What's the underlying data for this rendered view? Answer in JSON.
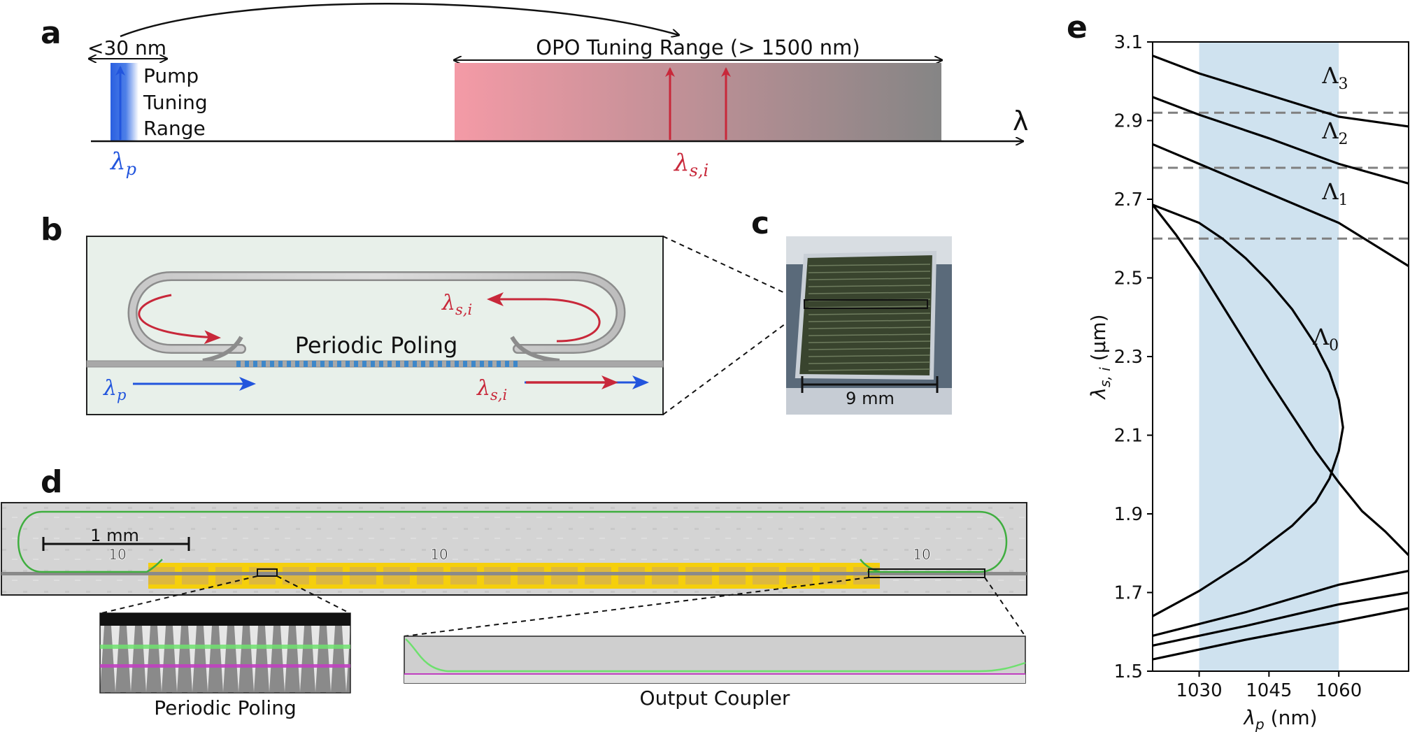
{
  "panel_labels": {
    "a": "a",
    "b": "b",
    "c": "c",
    "d": "d",
    "e": "e"
  },
  "panel_a": {
    "pump_range_label": "<30 nm",
    "pump_label_lines": [
      "Pump",
      "Tuning",
      "Range"
    ],
    "opo_range_label": "OPO Tuning Range (> 1500 nm)",
    "axis_symbol": "λ",
    "pump_symbol": "λ",
    "pump_subscript": "p",
    "signal_symbol": "λ",
    "signal_subscript": "s,i",
    "colors": {
      "pump": "#2255dd",
      "signal": "#c8283a",
      "opo_start": "#f49aa6",
      "opo_end": "#858585"
    }
  },
  "panel_b": {
    "poling_label": "Periodic Poling",
    "ring_signal_symbol": "λ",
    "ring_signal_subscript": "s,i",
    "pump_symbol": "λ",
    "pump_subscript": "p",
    "out_signal_symbol": "λ",
    "out_signal_subscript": "s,i",
    "colors": {
      "background": "#e8f0ea",
      "waveguide": "#a8a8a8",
      "poling": "#3d87c9"
    }
  },
  "panel_c": {
    "scale_label": "9 mm"
  },
  "panel_d": {
    "scale_label": "1 mm",
    "chip_marks": [
      "10",
      "10",
      "10"
    ],
    "inset_left_label": "Periodic Poling",
    "inset_right_label": "Output Coupler",
    "colors": {
      "poling_band": "#f5cf0c",
      "ring": "#3fae3f",
      "inset_green": "#6ee06e",
      "inset_magenta": "#c040c0"
    }
  },
  "chart_data": {
    "type": "line",
    "xlabel_symbol": "λ",
    "xlabel_subscript": "p",
    "xlabel_unit": " (nm)",
    "ylabel_symbol": "λ",
    "ylabel_subscript": "s, i",
    "ylabel_unit": " (μm)",
    "xlim": [
      1020,
      1075
    ],
    "ylim": [
      1.5,
      3.1
    ],
    "xticks": [
      1030,
      1045,
      1060
    ],
    "yticks": [
      1.5,
      1.7,
      1.9,
      2.1,
      2.3,
      2.5,
      2.7,
      2.9,
      3.1
    ],
    "shaded_band": {
      "from": 1030,
      "to": 1060,
      "color": "#cfe2ef"
    },
    "hlines": [
      2.6,
      2.78,
      2.92
    ],
    "series": [
      {
        "name": "Λ0",
        "label_sym": "Λ",
        "label_sub": "0",
        "points": [
          [
            1020,
            2.686
          ],
          [
            1025,
            2.61
          ],
          [
            1030,
            2.525
          ],
          [
            1035,
            2.43
          ],
          [
            1040,
            2.335
          ],
          [
            1045,
            2.24
          ],
          [
            1050,
            2.15
          ],
          [
            1055,
            2.06
          ],
          [
            1060,
            1.98
          ],
          [
            1065,
            1.907
          ],
          [
            1070,
            1.855
          ],
          [
            1075,
            1.795
          ]
        ],
        "lower_branch": [
          [
            1020,
            1.64
          ],
          [
            1030,
            1.704
          ],
          [
            1040,
            1.78
          ],
          [
            1050,
            1.87
          ],
          [
            1055,
            1.93
          ],
          [
            1058,
            1.99
          ],
          [
            1060,
            2.06
          ],
          [
            1060.9,
            2.12
          ],
          [
            1060,
            2.19
          ],
          [
            1058,
            2.26
          ],
          [
            1055,
            2.33
          ],
          [
            1050,
            2.42
          ],
          [
            1045,
            2.49
          ],
          [
            1040,
            2.55
          ],
          [
            1035,
            2.6
          ],
          [
            1030,
            2.64
          ],
          [
            1020,
            2.686
          ]
        ]
      },
      {
        "name": "Λ1",
        "label_sym": "Λ",
        "label_sub": "1",
        "points": [
          [
            1020,
            2.84
          ],
          [
            1030,
            2.79
          ],
          [
            1045,
            2.715
          ],
          [
            1060,
            2.64
          ],
          [
            1075,
            2.53
          ]
        ],
        "lower_branch": [
          [
            1020,
            1.59
          ],
          [
            1040,
            1.65
          ],
          [
            1060,
            1.72
          ],
          [
            1075,
            1.755
          ]
        ]
      },
      {
        "name": "Λ2",
        "label_sym": "Λ",
        "label_sub": "2",
        "points": [
          [
            1020,
            2.96
          ],
          [
            1030,
            2.915
          ],
          [
            1045,
            2.855
          ],
          [
            1060,
            2.79
          ],
          [
            1075,
            2.74
          ]
        ],
        "lower_branch": [
          [
            1020,
            1.565
          ],
          [
            1040,
            1.615
          ],
          [
            1060,
            1.67
          ],
          [
            1075,
            1.7
          ]
        ]
      },
      {
        "name": "Λ3",
        "label_sym": "Λ",
        "label_sub": "3",
        "points": [
          [
            1020,
            3.065
          ],
          [
            1030,
            3.02
          ],
          [
            1045,
            2.965
          ],
          [
            1060,
            2.91
          ],
          [
            1075,
            2.885
          ]
        ],
        "lower_branch": [
          [
            1020,
            1.53
          ],
          [
            1040,
            1.58
          ],
          [
            1060,
            1.625
          ],
          [
            1075,
            1.66
          ]
        ]
      }
    ]
  }
}
